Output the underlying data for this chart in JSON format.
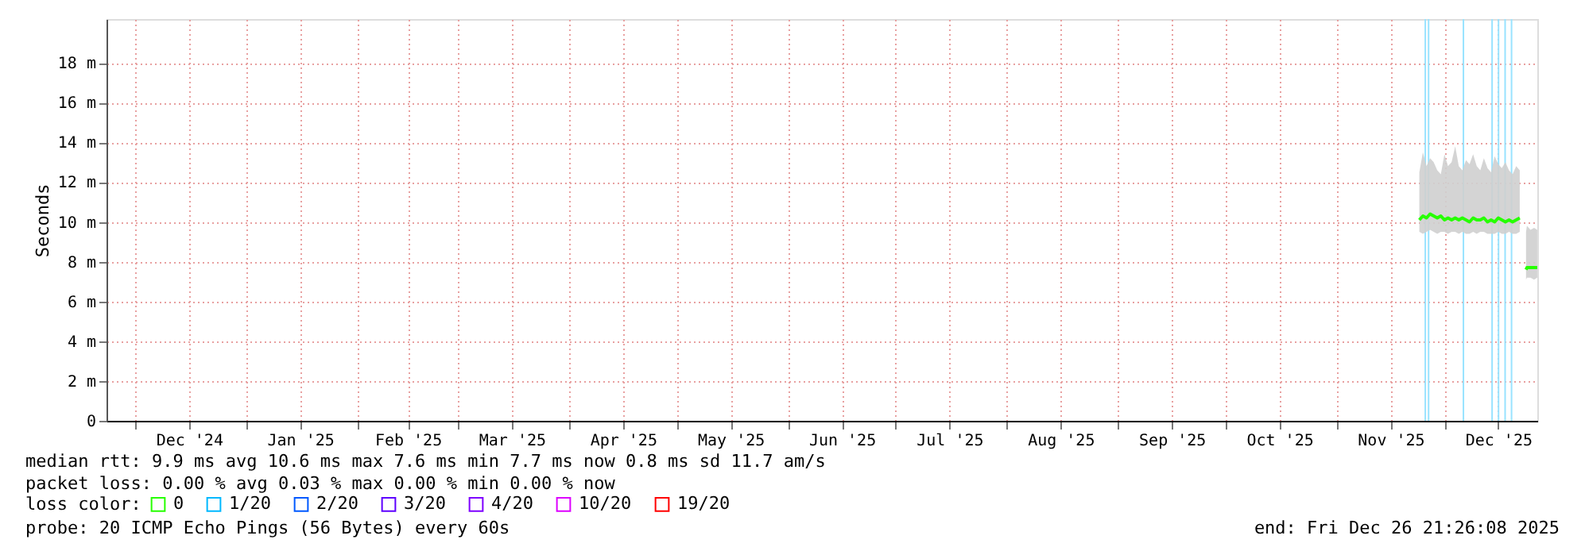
{
  "chart_data": {
    "type": "line",
    "ylabel": "Seconds",
    "x": [
      "2025-11-24",
      "2025-11-25",
      "2025-11-26",
      "2025-11-27",
      "2025-11-28",
      "2025-11-29",
      "2025-11-30",
      "2025-12-01",
      "2025-12-02",
      "2025-12-03",
      "2025-12-04",
      "2025-12-05",
      "2025-12-06",
      "2025-12-07",
      "2025-12-08",
      "2025-12-09",
      "2025-12-10",
      "2025-12-11",
      "2025-12-12",
      "2025-12-13",
      "2025-12-14",
      "2025-12-15",
      "2025-12-16",
      "2025-12-17",
      "2025-12-18",
      "2025-12-19",
      "2025-12-20",
      "2025-12-21",
      "2025-12-22"
    ],
    "series": [
      {
        "name": "0",
        "color": "#26ff00",
        "values": [
          10.1,
          10.3,
          10.2,
          10.4,
          10.3,
          10.2,
          10.3,
          10.1,
          10.2,
          10.1,
          10.2,
          10.1,
          10.2,
          10.1,
          10.0,
          10.2,
          10.1,
          10.1,
          10.2,
          10.0,
          10.1,
          10.0,
          10.2,
          10.1,
          10.0,
          10.1,
          10.0,
          10.1,
          10.2
        ],
        "lower": [
          9.5,
          9.4,
          9.5,
          9.6,
          9.5,
          9.4,
          9.5,
          9.5,
          9.4,
          9.5,
          9.5,
          9.4,
          9.5,
          9.4,
          9.4,
          9.5,
          9.4,
          9.5,
          9.5,
          9.4,
          9.4,
          9.4,
          9.5,
          9.4,
          9.4,
          9.5,
          9.4,
          9.4,
          9.5
        ],
        "upper": [
          12.5,
          13.5,
          12.8,
          13.2,
          13.0,
          12.6,
          12.4,
          13.4,
          12.8,
          13.0,
          13.8,
          12.8,
          12.6,
          13.1,
          12.9,
          13.4,
          12.8,
          12.6,
          13.2,
          12.7,
          12.5,
          13.3,
          12.9,
          12.7,
          13.0,
          12.6,
          12.4,
          12.8,
          12.6
        ]
      },
      {
        "color": "#26ff00",
        "x": [
          "2025-12-23T18:00",
          "2025-12-24",
          "2025-12-25",
          "2025-12-26",
          "2025-12-26T21:00"
        ],
        "values": [
          7.6,
          7.7,
          7.7,
          7.7,
          7.7
        ],
        "lower": [
          7.1,
          7.2,
          7.2,
          7.1,
          7.2
        ],
        "upper": [
          9.5,
          9.8,
          9.6,
          9.7,
          9.6
        ]
      },
      {
        "name": "1/20",
        "color": "#00b8ff",
        "values": [
          null,
          null,
          null,
          null,
          null,
          null,
          null,
          null,
          null,
          null,
          null,
          null,
          null,
          null,
          null,
          null,
          null,
          null,
          null,
          null,
          null,
          null,
          null,
          null,
          null,
          null,
          null,
          null,
          null
        ]
      },
      {
        "name": "2/20",
        "color": "#0059ff",
        "values": [
          null,
          null,
          null,
          null,
          null,
          null,
          null,
          null,
          null,
          null,
          null,
          null,
          null,
          null,
          null,
          null,
          null,
          null,
          null,
          null,
          null,
          null,
          null,
          null,
          null,
          null,
          null,
          null,
          null
        ]
      },
      {
        "name": "3/20",
        "color": "#5e00ff",
        "values": [
          null,
          null,
          null,
          null,
          null,
          null,
          null,
          null,
          null,
          null,
          null,
          null,
          null,
          null,
          null,
          null,
          null,
          null,
          null,
          null,
          null,
          null,
          null,
          null,
          null,
          null,
          null,
          null,
          null
        ]
      },
      {
        "name": "4/20",
        "color": "#7e00ff",
        "values": [
          null,
          null,
          null,
          null,
          null,
          null,
          null,
          null,
          null,
          null,
          null,
          null,
          null,
          null,
          null,
          null,
          null,
          null,
          null,
          null,
          null,
          null,
          null,
          null,
          null,
          null,
          null,
          null,
          null
        ]
      },
      {
        "name": "10/20",
        "color": "#dd00ff",
        "values": [
          null,
          null,
          null,
          null,
          null,
          null,
          null,
          null,
          null,
          null,
          null,
          null,
          null,
          null,
          null,
          null,
          null,
          null,
          null,
          null,
          null,
          null,
          null,
          null,
          null,
          null,
          null,
          null,
          null
        ]
      },
      {
        "name": "19/20",
        "color": "#ff0000",
        "values": [
          null,
          null,
          null,
          null,
          null,
          null,
          null,
          null,
          null,
          null,
          null,
          null,
          null,
          null,
          null,
          null,
          null,
          null,
          null,
          null,
          null,
          null,
          null,
          null,
          null,
          null,
          null,
          null,
          null
        ]
      }
    ],
    "legend_title": "loss color:",
    "legend": "bottom left",
    "ref_lines": [
      {
        "axis": "x",
        "value": "2025-11-25T16:00",
        "color": "#99e3ff"
      },
      {
        "axis": "x",
        "value": "2025-11-26T14:00",
        "color": "#99e3ff"
      },
      {
        "axis": "x",
        "value": "2025-12-06T07:00",
        "color": "#99e3ff"
      },
      {
        "axis": "x",
        "value": "2025-12-14T07:00",
        "color": "#99e3ff"
      },
      {
        "axis": "x",
        "value": "2025-12-16T02:00",
        "color": "#99e3ff"
      },
      {
        "axis": "x",
        "value": "2025-12-17T22:00",
        "color": "#99e3ff"
      },
      {
        "axis": "x",
        "value": "2025-12-19T17:00",
        "color": "#99e3ff"
      }
    ],
    "xlim": [
      "2024-11-23",
      "2025-12-26T21:26"
    ],
    "xticks": [
      {
        "value": "2024-12-01",
        "label": null
      },
      {
        "value": "2024-12-16",
        "label": "Dec '24"
      },
      {
        "value": "2025-01-01",
        "label": null
      },
      {
        "value": "2025-01-16",
        "label": "Jan '25"
      },
      {
        "value": "2025-02-01",
        "label": null
      },
      {
        "value": "2025-02-15",
        "label": "Feb '25"
      },
      {
        "value": "2025-03-01",
        "label": null
      },
      {
        "value": "2025-03-16",
        "label": "Mar '25"
      },
      {
        "value": "2025-04-01",
        "label": null
      },
      {
        "value": "2025-04-16",
        "label": "Apr '25"
      },
      {
        "value": "2025-05-01",
        "label": null
      },
      {
        "value": "2025-05-16",
        "label": "May '25"
      },
      {
        "value": "2025-06-01",
        "label": null
      },
      {
        "value": "2025-06-16",
        "label": "Jun '25"
      },
      {
        "value": "2025-07-01",
        "label": null
      },
      {
        "value": "2025-07-16",
        "label": "Jul '25"
      },
      {
        "value": "2025-08-01",
        "label": null
      },
      {
        "value": "2025-08-16",
        "label": "Aug '25"
      },
      {
        "value": "2025-09-01",
        "label": null
      },
      {
        "value": "2025-09-16",
        "label": "Sep '25"
      },
      {
        "value": "2025-10-01",
        "label": null
      },
      {
        "value": "2025-10-16",
        "label": "Oct '25"
      },
      {
        "value": "2025-11-01",
        "label": null
      },
      {
        "value": "2025-11-16",
        "label": "Nov '25"
      },
      {
        "value": "2025-12-01",
        "label": null
      },
      {
        "value": "2025-12-16",
        "label": "Dec '25"
      }
    ],
    "ylim": [
      0,
      20.2
    ],
    "yticks": [
      0,
      {
        "value": 2,
        "label": "2 m"
      },
      {
        "value": 4,
        "label": "4 m"
      },
      {
        "value": 6,
        "label": "6 m"
      },
      {
        "value": 8,
        "label": "8 m"
      },
      {
        "value": 10,
        "label": "10 m"
      },
      {
        "value": 12,
        "label": "12 m"
      },
      {
        "value": 14,
        "label": "14 m"
      },
      {
        "value": 16,
        "label": "16 m"
      },
      {
        "value": 18,
        "label": "18 m"
      }
    ],
    "grid": true,
    "marker": "none",
    "line_style": "solid",
    "annotations": [
      "median rtt:  9.9 ms avg  10.6 ms max  7.6 ms min  7.7 ms now  0.8 ms sd  11.7   am/s",
      "packet loss: 0.00 % avg  0.03 % max  0.00 % min  0.00 % now",
      "probe:       20 ICMP Echo Pings (56 Bytes) every 60s",
      "end: Fri Dec 26 21:26:08 2025"
    ]
  }
}
